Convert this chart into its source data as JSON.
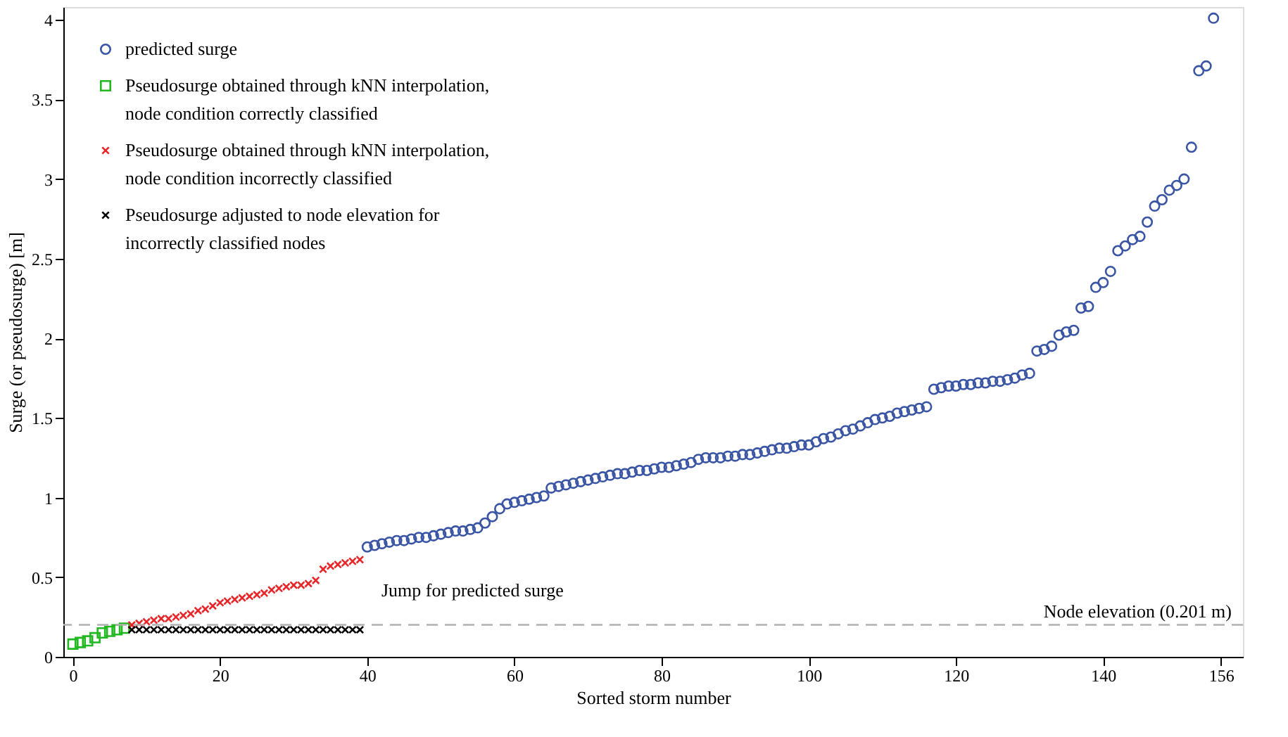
{
  "chart_data": {
    "type": "scatter",
    "xlabel": "Sorted storm number",
    "ylabel": "Surge (or pseudosurge) [m]",
    "xlim": [
      -1.3,
      159
    ],
    "ylim": [
      0,
      4.08
    ],
    "xticks": [
      0,
      20,
      40,
      60,
      80,
      100,
      120,
      140,
      156
    ],
    "yticks": [
      0,
      0.5,
      1,
      1.5,
      2,
      2.5,
      3,
      3.5,
      4
    ],
    "grid": false,
    "legend": "top left",
    "series": [
      {
        "name": "predicted surge",
        "color": "#3a55a4",
        "marker": "circle",
        "x": [
          40,
          41,
          42,
          43,
          44,
          45,
          46,
          47,
          48,
          49,
          50,
          51,
          52,
          53,
          54,
          55,
          56,
          57,
          58,
          59,
          60,
          61,
          62,
          63,
          64,
          65,
          66,
          67,
          68,
          69,
          70,
          71,
          72,
          73,
          74,
          75,
          76,
          77,
          78,
          79,
          80,
          81,
          82,
          83,
          84,
          85,
          86,
          87,
          88,
          89,
          90,
          91,
          92,
          93,
          94,
          95,
          96,
          97,
          98,
          99,
          100,
          101,
          102,
          103,
          104,
          105,
          106,
          107,
          108,
          109,
          110,
          111,
          112,
          113,
          114,
          115,
          116,
          117,
          118,
          119,
          120,
          121,
          122,
          123,
          124,
          125,
          126,
          127,
          128,
          129,
          130,
          131,
          132,
          133,
          134,
          135,
          136,
          137,
          138,
          139,
          140,
          141,
          142,
          143,
          144,
          145,
          146,
          147,
          148,
          149,
          150,
          151,
          152,
          153,
          154,
          155
        ],
        "values": [
          0.69,
          0.7,
          0.71,
          0.72,
          0.73,
          0.73,
          0.74,
          0.75,
          0.75,
          0.76,
          0.77,
          0.78,
          0.79,
          0.79,
          0.8,
          0.81,
          0.84,
          0.88,
          0.93,
          0.96,
          0.97,
          0.98,
          0.99,
          1.0,
          1.01,
          1.06,
          1.07,
          1.08,
          1.09,
          1.1,
          1.11,
          1.12,
          1.13,
          1.14,
          1.15,
          1.15,
          1.16,
          1.17,
          1.17,
          1.18,
          1.19,
          1.19,
          1.2,
          1.21,
          1.22,
          1.24,
          1.25,
          1.25,
          1.25,
          1.26,
          1.26,
          1.27,
          1.27,
          1.28,
          1.29,
          1.3,
          1.31,
          1.31,
          1.32,
          1.33,
          1.33,
          1.35,
          1.37,
          1.38,
          1.4,
          1.42,
          1.43,
          1.45,
          1.47,
          1.49,
          1.5,
          1.51,
          1.53,
          1.54,
          1.55,
          1.56,
          1.57,
          1.68,
          1.69,
          1.7,
          1.7,
          1.71,
          1.71,
          1.72,
          1.72,
          1.73,
          1.73,
          1.74,
          1.75,
          1.77,
          1.78,
          1.92,
          1.93,
          1.95,
          2.02,
          2.04,
          2.05,
          2.19,
          2.2,
          2.32,
          2.35,
          2.42,
          2.55,
          2.58,
          2.62,
          2.64,
          2.73,
          2.83,
          2.87,
          2.93,
          2.96,
          3.0,
          3.2,
          3.68,
          3.71,
          4.01
        ]
      },
      {
        "name": "Pseudosurge obtained through kNN interpolation, node condition correctly classified",
        "color": "#22b822",
        "marker": "square",
        "x": [
          0,
          1,
          2,
          3,
          4,
          5,
          6,
          7
        ],
        "values": [
          0.08,
          0.09,
          0.1,
          0.12,
          0.15,
          0.16,
          0.17,
          0.18
        ]
      },
      {
        "name": "Pseudosurge obtained through kNN interpolation, node condition incorrectly classified",
        "color": "#e8262a",
        "marker": "cross",
        "x": [
          8,
          9,
          10,
          11,
          12,
          13,
          14,
          15,
          16,
          17,
          18,
          19,
          20,
          21,
          22,
          23,
          24,
          25,
          26,
          27,
          28,
          29,
          30,
          31,
          32,
          33,
          34,
          35,
          36,
          37,
          38,
          39
        ],
        "values": [
          0.2,
          0.21,
          0.22,
          0.23,
          0.24,
          0.24,
          0.25,
          0.26,
          0.27,
          0.29,
          0.3,
          0.32,
          0.34,
          0.35,
          0.36,
          0.37,
          0.38,
          0.39,
          0.4,
          0.42,
          0.43,
          0.44,
          0.45,
          0.45,
          0.46,
          0.48,
          0.55,
          0.57,
          0.58,
          0.59,
          0.6,
          0.61
        ]
      },
      {
        "name": "Pseudosurge adjusted to node elevation for incorrectly classified nodes",
        "color": "#000000",
        "marker": "cross",
        "x": [
          8,
          9,
          10,
          11,
          12,
          13,
          14,
          15,
          16,
          17,
          18,
          19,
          20,
          21,
          22,
          23,
          24,
          25,
          26,
          27,
          28,
          29,
          30,
          31,
          32,
          33,
          34,
          35,
          36,
          37,
          38,
          39
        ],
        "values": [
          0.17,
          0.17,
          0.17,
          0.17,
          0.17,
          0.17,
          0.17,
          0.17,
          0.17,
          0.17,
          0.17,
          0.17,
          0.17,
          0.17,
          0.17,
          0.17,
          0.17,
          0.17,
          0.17,
          0.17,
          0.17,
          0.17,
          0.17,
          0.17,
          0.17,
          0.17,
          0.17,
          0.17,
          0.17,
          0.17,
          0.17,
          0.17
        ]
      }
    ],
    "ref_lines": [
      {
        "axis": "y",
        "value": 0.201,
        "label": "Node elevation (0.201 m)",
        "color": "#b0b0b0",
        "line_style": "dashed"
      }
    ],
    "annotations": [
      "Jump for predicted surge"
    ]
  }
}
